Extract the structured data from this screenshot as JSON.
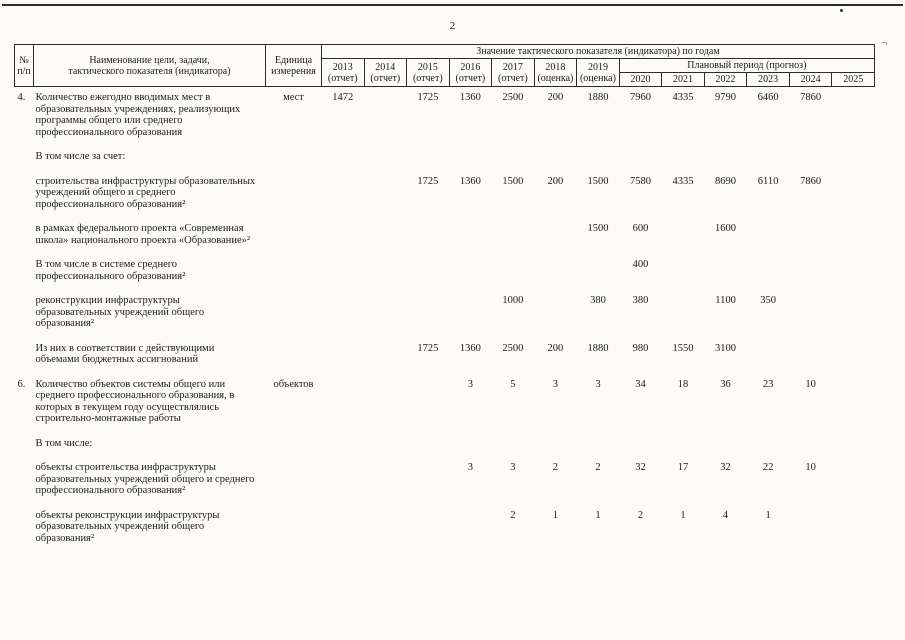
{
  "page": {
    "number": "2"
  },
  "artifacts": {
    "right_mark": "¬"
  },
  "table": {
    "header": {
      "col_num": "№\nп/п",
      "col_name": "Наименование цели, задачи,\nтактического показателя (индикатора)",
      "col_unit": "Единица\nизмерения",
      "values_title": "Значение тактического показателя (индикатора) по годам",
      "year_cols": [
        "2013\n(отчет)",
        "2014\n(отчет)",
        "2015\n(отчет)",
        "2016\n(отчет)",
        "2017\n(отчет)",
        "2018\n(оценка)",
        "2019\n(оценка)"
      ],
      "plan_title": "Плановый период (прогноз)",
      "plan_years": [
        "2020",
        "2021",
        "2022",
        "2023",
        "2024",
        "2025"
      ]
    },
    "rows": [
      {
        "num": "4.",
        "name": "Количество ежегодно вводимых мест в образовательных учреждениях, реализующих программы общего или среднего профессионального образования",
        "unit": "мест",
        "values": [
          "1472",
          "",
          "1725",
          "1360",
          "2500",
          "200",
          "1880",
          "7960",
          "4335",
          "9790",
          "6460",
          "7860",
          ""
        ]
      },
      {
        "num": "",
        "name": "В том числе за счет:",
        "unit": "",
        "values": [
          "",
          "",
          "",
          "",
          "",
          "",
          "",
          "",
          "",
          "",
          "",
          "",
          ""
        ]
      },
      {
        "num": "",
        "name": "строительства инфраструктуры образовательных учреждений общего и среднего профессионального образования²",
        "unit": "",
        "values": [
          "",
          "",
          "1725",
          "1360",
          "1500",
          "200",
          "1500",
          "7580",
          "4335",
          "8690",
          "6110",
          "7860",
          ""
        ]
      },
      {
        "num": "",
        "name": "в рамках федерального проекта «Современная школа» национального проекта «Образование»²",
        "unit": "",
        "values": [
          "",
          "",
          "",
          "",
          "",
          "",
          "1500",
          "600",
          "",
          "1600",
          "",
          "",
          ""
        ]
      },
      {
        "num": "",
        "name": "В том числе в системе среднего профессионального образования²",
        "unit": "",
        "values": [
          "",
          "",
          "",
          "",
          "",
          "",
          "",
          "400",
          "",
          "",
          "",
          "",
          ""
        ]
      },
      {
        "num": "",
        "name": "реконструкции инфраструктуры образовательных учреждений общего образования²",
        "unit": "",
        "values": [
          "",
          "",
          "",
          "",
          "1000",
          "",
          "380",
          "380",
          "",
          "1100",
          "350",
          "",
          ""
        ]
      },
      {
        "num": "",
        "name": "Из них в соответствии с действующими объемами бюджетных ассигнований",
        "unit": "",
        "values": [
          "",
          "",
          "1725",
          "1360",
          "2500",
          "200",
          "1880",
          "980",
          "1550",
          "3100",
          "",
          "",
          ""
        ]
      },
      {
        "num": "6.",
        "name": "Количество объектов системы общего или среднего профессионального образования, в которых в текущем году осуществлялись строительно-монтажные работы",
        "unit": "объектов",
        "values": [
          "",
          "",
          "",
          "3",
          "5",
          "3",
          "3",
          "34",
          "18",
          "36",
          "23",
          "10",
          ""
        ]
      },
      {
        "num": "",
        "name": "В том числе:",
        "unit": "",
        "values": [
          "",
          "",
          "",
          "",
          "",
          "",
          "",
          "",
          "",
          "",
          "",
          "",
          ""
        ]
      },
      {
        "num": "",
        "name": "объекты строительства инфраструктуры образовательных учреждений общего и среднего профессионального образования²",
        "unit": "",
        "values": [
          "",
          "",
          "",
          "3",
          "3",
          "2",
          "2",
          "32",
          "17",
          "32",
          "22",
          "10",
          ""
        ]
      },
      {
        "num": "",
        "name": "объекты реконструкции инфраструктуры образовательных учреждений общего образования²",
        "unit": "",
        "values": [
          "",
          "",
          "",
          "",
          "2",
          "1",
          "1",
          "2",
          "1",
          "4",
          "1",
          "",
          ""
        ]
      }
    ]
  }
}
